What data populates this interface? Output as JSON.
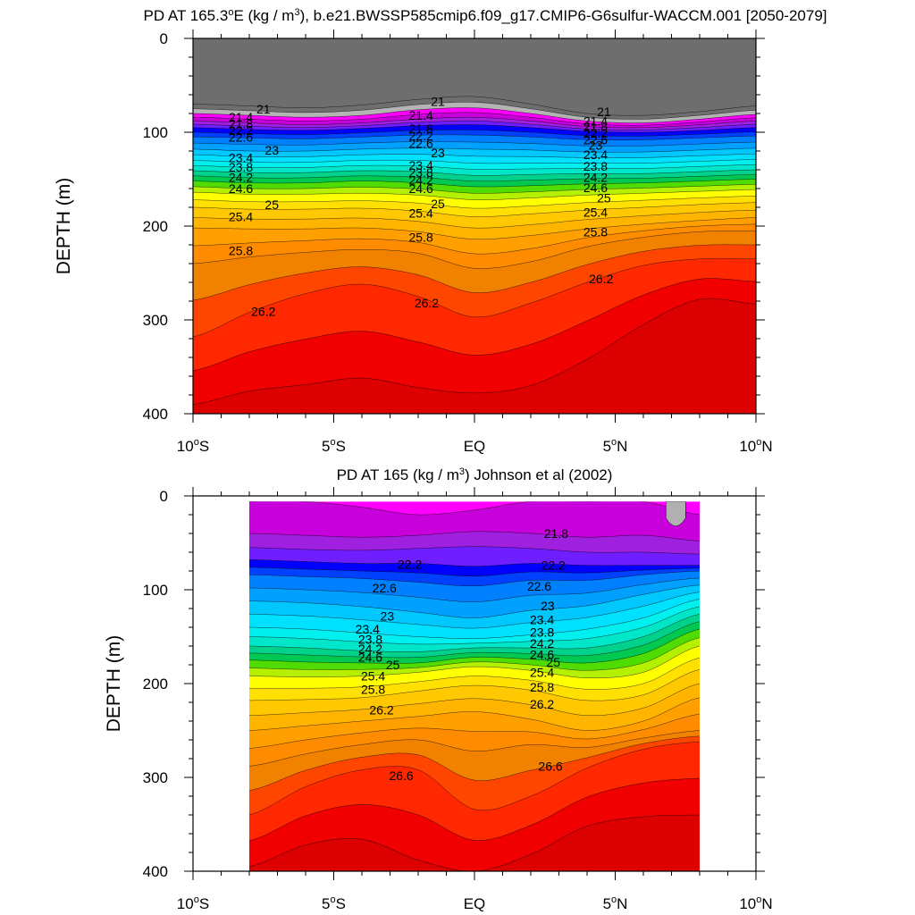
{
  "chart_data": [
    {
      "type": "contour",
      "title": "PD AT 165.3°E (kg / m³), b.e21.BWSSP585cmip6.f09_g17.CMIP6-G6sulfur-WACCM.001 [2050-2079]",
      "title_parts": {
        "pre": "PD AT 165.3",
        "deg": "o",
        "mid": "E (kg / m",
        "sup": "3",
        "post": "), b.e21.BWSSP585cmip6.f09_g17.CMIP6-G6sulfur-WACCM.001 [2050-2079]"
      },
      "xlabel": "",
      "ylabel": "DEPTH (m)",
      "xlim": [
        -10,
        10
      ],
      "ylim": [
        400,
        0
      ],
      "x_ticks": [
        {
          "value": -10,
          "num": "10",
          "hemi": "S"
        },
        {
          "value": -5,
          "num": "5",
          "hemi": "S"
        },
        {
          "value": 0,
          "num": "EQ",
          "hemi": ""
        },
        {
          "value": 5,
          "num": "5",
          "hemi": "N"
        },
        {
          "value": 10,
          "num": "10",
          "hemi": "N"
        }
      ],
      "y_ticks": [
        0,
        100,
        200,
        300,
        400
      ],
      "data_x_range": [
        -10,
        10
      ],
      "contour_interval": 0.2,
      "x": [
        -10,
        -8,
        -6,
        -4,
        -2,
        0,
        2,
        4,
        6,
        8,
        10
      ],
      "isopycnal_depths": [
        {
          "level": 21.0,
          "depth": [
            70,
            72,
            74,
            71,
            65,
            62,
            70,
            80,
            82,
            78,
            72
          ]
        },
        {
          "level": 21.4,
          "depth": [
            80,
            82,
            84,
            82,
            76,
            74,
            80,
            88,
            90,
            86,
            81
          ]
        },
        {
          "level": 21.8,
          "depth": [
            88,
            90,
            92,
            90,
            86,
            84,
            88,
            94,
            95,
            92,
            88
          ]
        },
        {
          "level": 22.2,
          "depth": [
            95,
            97,
            98,
            96,
            93,
            92,
            95,
            99,
            100,
            98,
            95
          ]
        },
        {
          "level": 22.6,
          "depth": [
            105,
            106,
            107,
            105,
            103,
            103,
            105,
            108,
            108,
            106,
            104
          ]
        },
        {
          "level": 23.0,
          "depth": [
            118,
            120,
            120,
            118,
            117,
            118,
            119,
            121,
            121,
            119,
            117
          ]
        },
        {
          "level": 23.4,
          "depth": [
            130,
            132,
            132,
            130,
            130,
            133,
            133,
            133,
            133,
            131,
            129
          ]
        },
        {
          "level": 23.8,
          "depth": [
            141,
            143,
            143,
            141,
            142,
            146,
            145,
            144,
            144,
            142,
            140
          ]
        },
        {
          "level": 24.2,
          "depth": [
            152,
            154,
            154,
            152,
            154,
            158,
            157,
            155,
            154,
            152,
            150
          ]
        },
        {
          "level": 24.6,
          "depth": [
            164,
            166,
            166,
            165,
            167,
            172,
            170,
            167,
            165,
            163,
            161
          ]
        },
        {
          "level": 25.0,
          "depth": [
            180,
            182,
            182,
            181,
            184,
            190,
            187,
            183,
            180,
            177,
            175
          ]
        },
        {
          "level": 25.4,
          "depth": [
            202,
            203,
            203,
            202,
            206,
            214,
            210,
            203,
            198,
            194,
            191
          ]
        },
        {
          "level": 25.8,
          "depth": [
            240,
            233,
            228,
            225,
            229,
            245,
            238,
            222,
            212,
            206,
            205
          ]
        },
        {
          "level": 26.2,
          "depth": [
            318,
            292,
            272,
            262,
            275,
            297,
            282,
            260,
            242,
            235,
            235
          ]
        },
        {
          "level": 26.6,
          "depth": [
            390,
            376,
            369,
            362,
            372,
            378,
            370,
            342,
            305,
            278,
            283
          ]
        }
      ],
      "contour_labels": [
        {
          "text": "21",
          "x": -7.5,
          "y": 75
        },
        {
          "text": "21.4",
          "x": -8.3,
          "y": 84
        },
        {
          "text": "21.8",
          "x": -8.3,
          "y": 91
        },
        {
          "text": "22.2",
          "x": -8.3,
          "y": 98
        },
        {
          "text": "22.6",
          "x": -8.3,
          "y": 105
        },
        {
          "text": "23",
          "x": -7.2,
          "y": 119
        },
        {
          "text": "23.4",
          "x": -8.3,
          "y": 127
        },
        {
          "text": "23.8",
          "x": -8.3,
          "y": 137
        },
        {
          "text": "24.2",
          "x": -8.3,
          "y": 148
        },
        {
          "text": "24.6",
          "x": -8.3,
          "y": 160
        },
        {
          "text": "25",
          "x": -7.2,
          "y": 177
        },
        {
          "text": "25.4",
          "x": -8.3,
          "y": 190
        },
        {
          "text": "25.8",
          "x": -8.3,
          "y": 226
        },
        {
          "text": "26.2",
          "x": -7.5,
          "y": 291
        },
        {
          "text": "21",
          "x": -1.3,
          "y": 67
        },
        {
          "text": "21.4",
          "x": -1.9,
          "y": 82
        },
        {
          "text": "21.8",
          "x": -1.9,
          "y": 96
        },
        {
          "text": "22.2",
          "x": -1.9,
          "y": 104
        },
        {
          "text": "22.6",
          "x": -1.9,
          "y": 112
        },
        {
          "text": "23",
          "x": -1.3,
          "y": 122
        },
        {
          "text": "23.4",
          "x": -1.9,
          "y": 135
        },
        {
          "text": "23.8",
          "x": -1.9,
          "y": 143
        },
        {
          "text": "24.2",
          "x": -1.9,
          "y": 151
        },
        {
          "text": "24.6",
          "x": -1.9,
          "y": 160
        },
        {
          "text": "25",
          "x": -1.3,
          "y": 176
        },
        {
          "text": "25.4",
          "x": -1.9,
          "y": 186
        },
        {
          "text": "25.8",
          "x": -1.9,
          "y": 212
        },
        {
          "text": "26.2",
          "x": -1.7,
          "y": 282
        },
        {
          "text": "21",
          "x": 4.6,
          "y": 78
        },
        {
          "text": "21.4",
          "x": 4.3,
          "y": 88
        },
        {
          "text": "21.8",
          "x": 4.3,
          "y": 94
        },
        {
          "text": "22.2",
          "x": 4.3,
          "y": 101
        },
        {
          "text": "22.6",
          "x": 4.3,
          "y": 108
        },
        {
          "text": "23",
          "x": 4.3,
          "y": 114
        },
        {
          "text": "23.4",
          "x": 4.3,
          "y": 124
        },
        {
          "text": "23.8",
          "x": 4.3,
          "y": 136
        },
        {
          "text": "24.2",
          "x": 4.3,
          "y": 148
        },
        {
          "text": "24.6",
          "x": 4.3,
          "y": 159
        },
        {
          "text": "25",
          "x": 4.6,
          "y": 170
        },
        {
          "text": "25.4",
          "x": 4.3,
          "y": 185
        },
        {
          "text": "25.8",
          "x": 4.3,
          "y": 206
        },
        {
          "text": "26.2",
          "x": 4.5,
          "y": 256
        }
      ]
    },
    {
      "type": "contour",
      "title": "PD AT 165 (kg / m³) Johnson et al (2002)",
      "title_parts": {
        "pre": "PD AT 165 (kg / m",
        "deg": "",
        "mid": "",
        "sup": "3",
        "post": ") Johnson et al (2002)"
      },
      "xlabel": "",
      "ylabel": "DEPTH (m)",
      "xlim": [
        -10,
        10
      ],
      "ylim": [
        400,
        0
      ],
      "x_ticks": [
        {
          "value": -10,
          "num": "10",
          "hemi": "S"
        },
        {
          "value": -5,
          "num": "5",
          "hemi": "S"
        },
        {
          "value": 0,
          "num": "EQ",
          "hemi": ""
        },
        {
          "value": 5,
          "num": "5",
          "hemi": "N"
        },
        {
          "value": 10,
          "num": "10",
          "hemi": "N"
        }
      ],
      "y_ticks": [
        0,
        100,
        200,
        300,
        400
      ],
      "data_x_range": [
        -8,
        8
      ],
      "data_depth_top": 6,
      "contour_interval": 0.2,
      "x": [
        -8,
        -6,
        -4,
        -2,
        0,
        2,
        4,
        6,
        8
      ],
      "isopycnal_depths": [
        {
          "level": 21.6,
          "depth": [
            6,
            6,
            12,
            20,
            15,
            6,
            6,
            6,
            20
          ]
        },
        {
          "level": 21.8,
          "depth": [
            40,
            42,
            44,
            42,
            38,
            40,
            44,
            42,
            48
          ]
        },
        {
          "level": 22.0,
          "depth": [
            55,
            57,
            58,
            56,
            54,
            56,
            60,
            60,
            62
          ]
        },
        {
          "level": 22.2,
          "depth": [
            68,
            70,
            72,
            72,
            75,
            72,
            74,
            74,
            74
          ]
        },
        {
          "level": 22.6,
          "depth": [
            84,
            86,
            88,
            92,
            96,
            90,
            90,
            84,
            80
          ]
        },
        {
          "level": 23.0,
          "depth": [
            112,
            114,
            118,
            124,
            130,
            122,
            117,
            105,
            95
          ]
        },
        {
          "level": 23.4,
          "depth": [
            140,
            142,
            146,
            150,
            152,
            148,
            142,
            130,
            110
          ]
        },
        {
          "level": 23.8,
          "depth": [
            160,
            162,
            165,
            166,
            162,
            162,
            162,
            150,
            126
          ]
        },
        {
          "level": 24.2,
          "depth": [
            175,
            177,
            178,
            178,
            172,
            174,
            178,
            168,
            142
          ]
        },
        {
          "level": 24.6,
          "depth": [
            192,
            193,
            192,
            188,
            182,
            186,
            194,
            188,
            160
          ]
        },
        {
          "level": 25.0,
          "depth": [
            218,
            217,
            215,
            208,
            202,
            207,
            218,
            212,
            185
          ]
        },
        {
          "level": 25.4,
          "depth": [
            250,
            245,
            240,
            235,
            230,
            238,
            250,
            240,
            215
          ]
        },
        {
          "level": 25.8,
          "depth": [
            288,
            275,
            265,
            260,
            272,
            265,
            268,
            258,
            250
          ]
        },
        {
          "level": 26.2,
          "depth": [
            340,
            310,
            292,
            292,
            334,
            320,
            290,
            270,
            262
          ]
        },
        {
          "level": 26.6,
          "depth": [
            395,
            372,
            366,
            388,
            400,
            382,
            352,
            342,
            340
          ]
        }
      ],
      "patch": {
        "level": 21.4,
        "x": [
          6.8,
          7.5
        ],
        "y": [
          6,
          35
        ],
        "color": "#b0b0b0"
      },
      "contour_labels": [
        {
          "text": "21.8",
          "x": 2.9,
          "y": 40
        },
        {
          "text": "22.2",
          "x": -2.3,
          "y": 73
        },
        {
          "text": "22.2",
          "x": 2.8,
          "y": 74
        },
        {
          "text": "22.6",
          "x": -3.2,
          "y": 98
        },
        {
          "text": "22.6",
          "x": 2.3,
          "y": 96
        },
        {
          "text": "23",
          "x": -3.1,
          "y": 128
        },
        {
          "text": "23",
          "x": 2.6,
          "y": 117
        },
        {
          "text": "23.4",
          "x": -3.8,
          "y": 142
        },
        {
          "text": "23.4",
          "x": 2.4,
          "y": 132
        },
        {
          "text": "23.8",
          "x": -3.7,
          "y": 153
        },
        {
          "text": "23.8",
          "x": 2.4,
          "y": 145
        },
        {
          "text": "24.2",
          "x": -3.7,
          "y": 163
        },
        {
          "text": "24.2",
          "x": 2.4,
          "y": 157
        },
        {
          "text": "24.6",
          "x": -3.7,
          "y": 172
        },
        {
          "text": "24.6",
          "x": 2.4,
          "y": 169
        },
        {
          "text": "25",
          "x": -2.9,
          "y": 180
        },
        {
          "text": "25",
          "x": 2.8,
          "y": 177
        },
        {
          "text": "25.4",
          "x": -3.6,
          "y": 192
        },
        {
          "text": "25.4",
          "x": 2.4,
          "y": 188
        },
        {
          "text": "25.8",
          "x": -3.6,
          "y": 206
        },
        {
          "text": "25.8",
          "x": 2.4,
          "y": 204
        },
        {
          "text": "26.2",
          "x": -3.3,
          "y": 228
        },
        {
          "text": "26.2",
          "x": 2.4,
          "y": 222
        },
        {
          "text": "26.6",
          "x": -2.6,
          "y": 298
        },
        {
          "text": "26.6",
          "x": 2.7,
          "y": 288
        }
      ]
    }
  ],
  "palette": [
    {
      "from": 20.8,
      "color": "#6e6e6e"
    },
    {
      "from": 21.2,
      "color": "#b4b4b4"
    },
    {
      "from": 21.4,
      "color": "#ff00ff"
    },
    {
      "from": 21.6,
      "color": "#c800dc"
    },
    {
      "from": 21.8,
      "color": "#a020e0"
    },
    {
      "from": 22.0,
      "color": "#6e1eff"
    },
    {
      "from": 22.2,
      "color": "#0000ff"
    },
    {
      "from": 22.4,
      "color": "#0040ff"
    },
    {
      "from": 22.6,
      "color": "#0080ff"
    },
    {
      "from": 22.8,
      "color": "#00a0ff"
    },
    {
      "from": 23.0,
      "color": "#00c8ff"
    },
    {
      "from": 23.2,
      "color": "#00e0ff"
    },
    {
      "from": 23.4,
      "color": "#00f0f0"
    },
    {
      "from": 23.6,
      "color": "#00e6c8"
    },
    {
      "from": 23.8,
      "color": "#00d28c"
    },
    {
      "from": 24.0,
      "color": "#00c850"
    },
    {
      "from": 24.2,
      "color": "#50dc00"
    },
    {
      "from": 24.4,
      "color": "#b4f000"
    },
    {
      "from": 24.6,
      "color": "#ffff00"
    },
    {
      "from": 24.8,
      "color": "#ffe000"
    },
    {
      "from": 25.0,
      "color": "#ffc800"
    },
    {
      "from": 25.2,
      "color": "#ffb400"
    },
    {
      "from": 25.4,
      "color": "#ffa000"
    },
    {
      "from": 25.6,
      "color": "#ff8c00"
    },
    {
      "from": 25.8,
      "color": "#f08200"
    },
    {
      "from": 26.0,
      "color": "#ff4600"
    },
    {
      "from": 26.2,
      "color": "#ff2800"
    },
    {
      "from": 26.4,
      "color": "#f00000"
    },
    {
      "from": 26.6,
      "color": "#dc0000"
    },
    {
      "from": 26.8,
      "color": "#c80000"
    }
  ]
}
